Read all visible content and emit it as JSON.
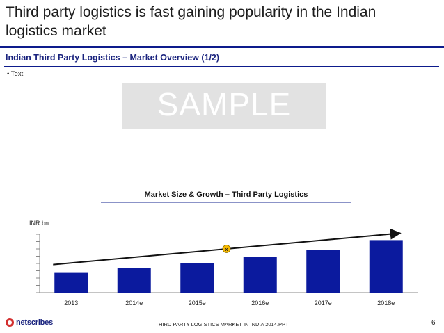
{
  "slide": {
    "title": "Third party logistics is fast gaining popularity in the Indian logistics market",
    "subtitle": "Indian Third Party Logistics – Market Overview (1/2)",
    "bullet": "• Text",
    "watermark": "SAMPLE"
  },
  "chart_data": {
    "type": "bar",
    "title": "Market Size & Growth – Third Party Logistics",
    "ylabel": "INR bn",
    "xlabel": "",
    "categories": [
      "2013",
      "2014e",
      "2015e",
      "2016e",
      "2017e",
      "2018e"
    ],
    "values": [
      28,
      34,
      40,
      49,
      59,
      72
    ],
    "ylim": [
      0,
      80
    ],
    "y_tick_count": 8,
    "bar_color": "#0b1a9e",
    "growth_marker": "x",
    "growth_arrow": {
      "from_index": 0,
      "to_index": 5
    }
  },
  "footer": {
    "brand": "netscribes",
    "text": "THIRD PARTY LOGISTICS MARKET IN INDIA 2014.PPT",
    "page": "6"
  }
}
